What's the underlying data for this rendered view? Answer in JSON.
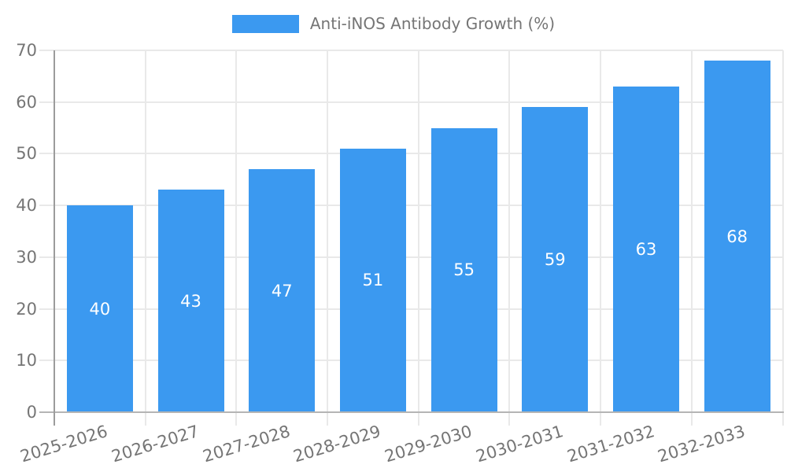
{
  "legend": {
    "label": "Anti-iNOS Antibody Growth (%)"
  },
  "chart_data": {
    "type": "bar",
    "title": "Anti-iNOS Antibody Growth (%)",
    "categories": [
      "2025-2026",
      "2026-2027",
      "2027-2028",
      "2028-2029",
      "2029-2030",
      "2030-2031",
      "2031-2032",
      "2032-2033"
    ],
    "values": [
      40,
      43,
      47,
      51,
      55,
      59,
      63,
      68
    ],
    "xlabel": "",
    "ylabel": "",
    "ylim": [
      0,
      70
    ],
    "yticks": [
      0,
      10,
      20,
      30,
      40,
      50,
      60,
      70
    ],
    "grid": true,
    "legend_position": "top-center",
    "colors": {
      "bar": "#3b99f0",
      "gridline": "#e9e9e9",
      "y_axis_line": "#9c9c9c",
      "x_axis_line": "#b5b5b5",
      "tick_text": "#757575",
      "value_label": "#ffffff",
      "background": "#ffffff"
    }
  }
}
